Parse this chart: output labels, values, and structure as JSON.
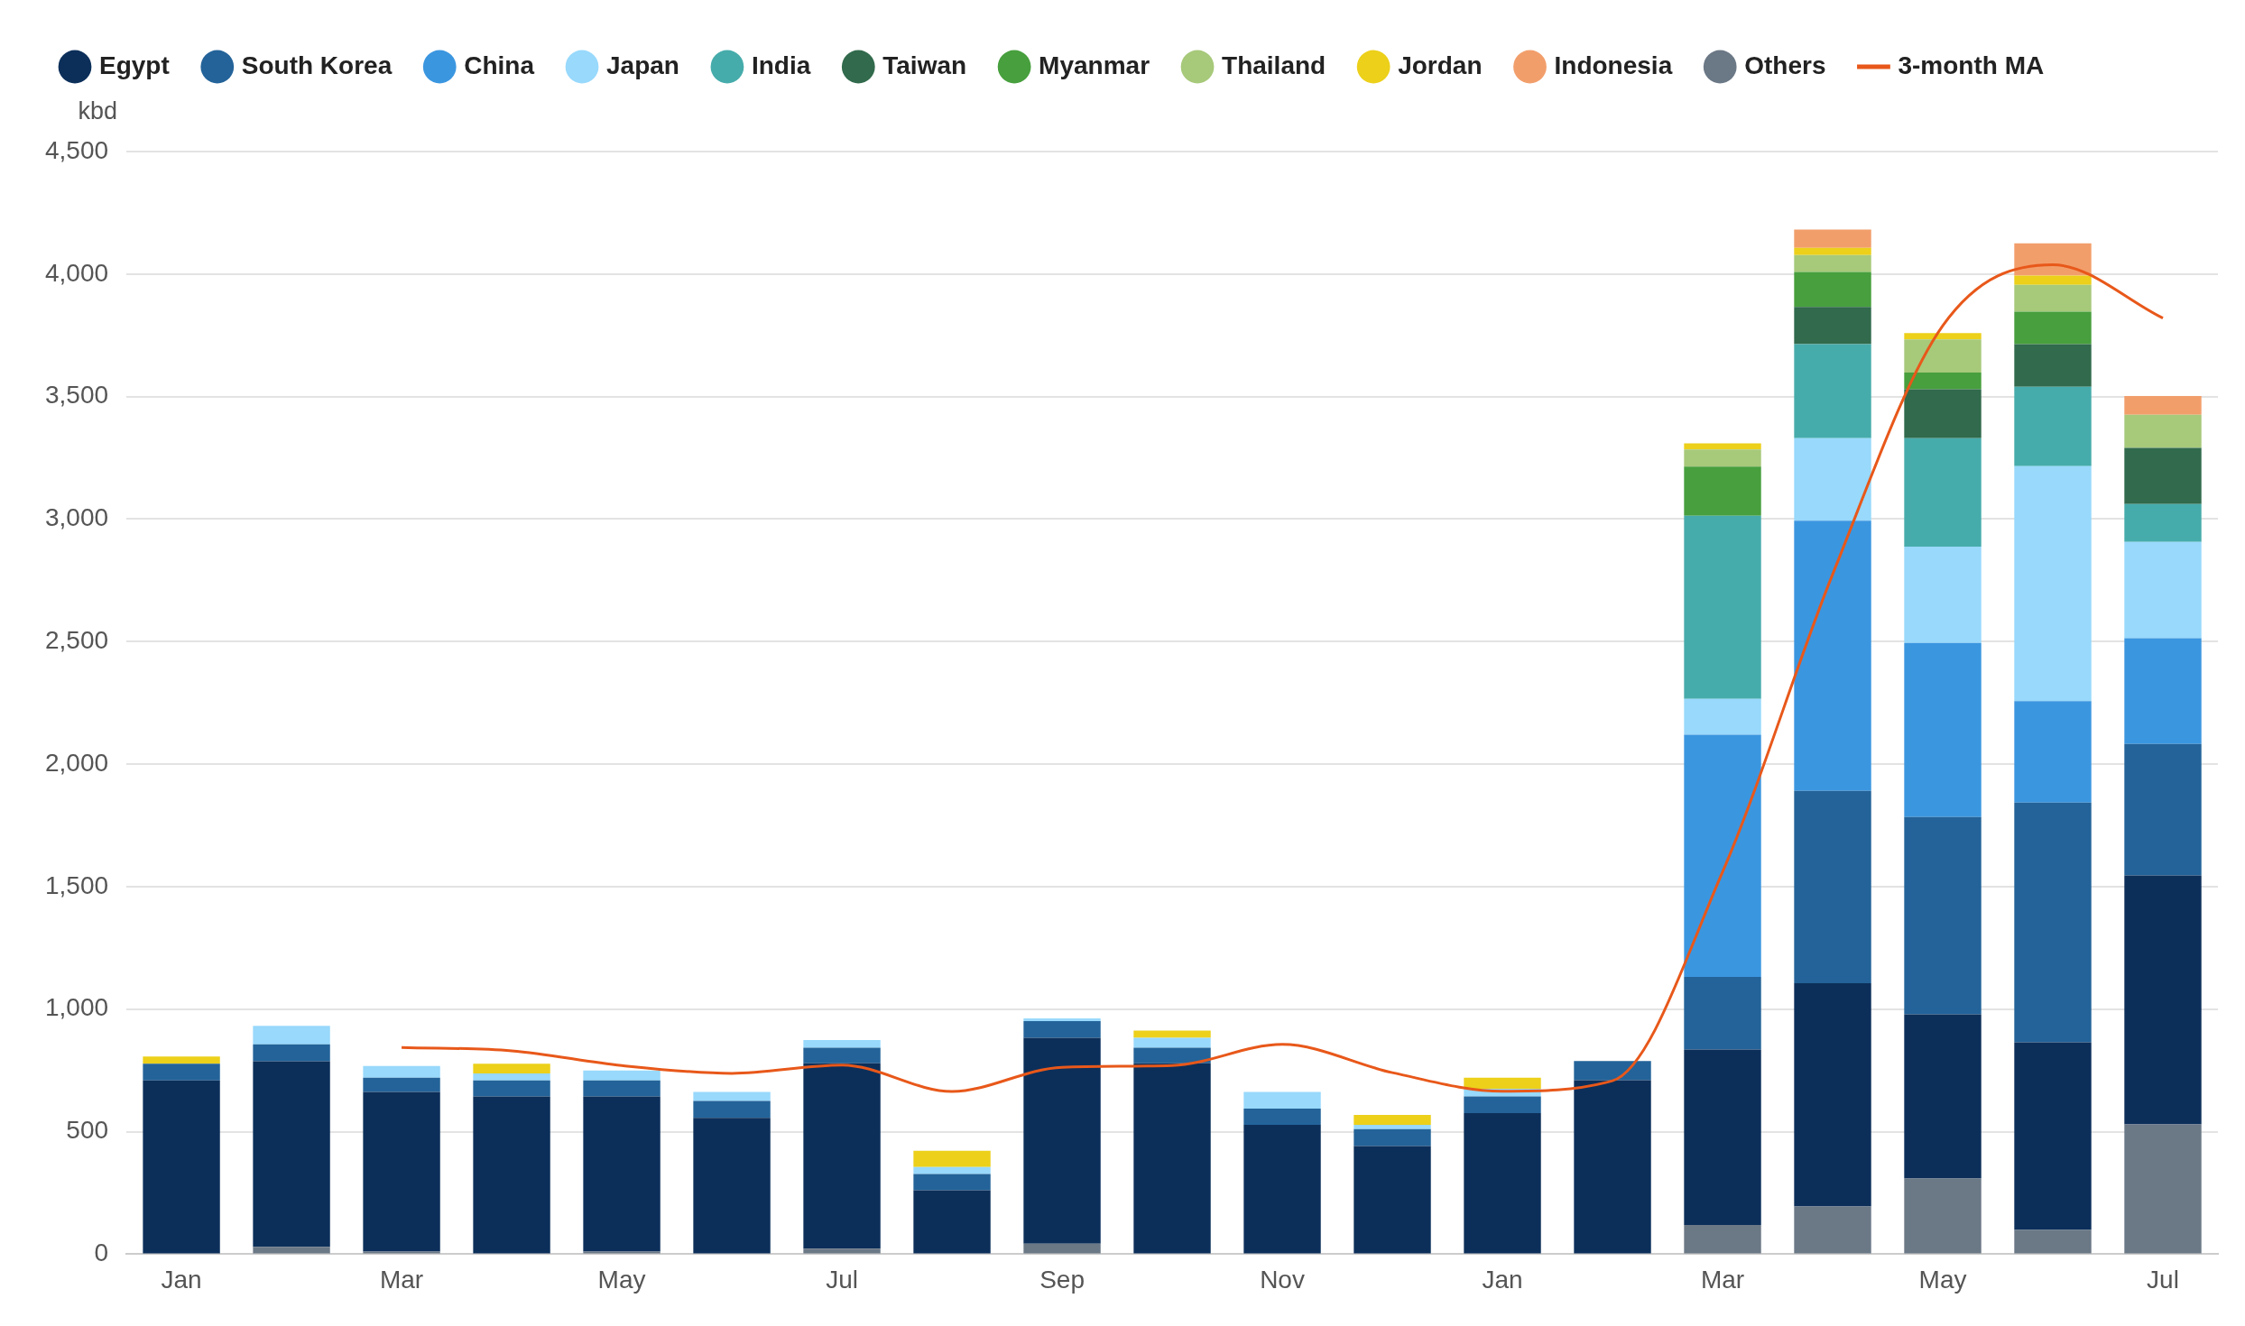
{
  "chart_data": {
    "type": "bar",
    "stacked": true,
    "ylabel": "kbd",
    "categories": [
      "Jan",
      null,
      "Mar",
      null,
      "May",
      null,
      "Jul",
      null,
      "Sep",
      null,
      "Nov",
      null,
      "Jan",
      null,
      "Mar",
      null,
      "May",
      null,
      "Jul"
    ],
    "series": [
      {
        "name": "Others",
        "color": "#6b7886",
        "values": [
          null,
          30,
          11,
          null,
          11,
          null,
          23,
          null,
          43,
          null,
          null,
          null,
          null,
          null,
          119,
          195,
          309,
          99,
          530
        ]
      },
      {
        "name": "Egypt",
        "color": "#0c2f5a",
        "values": [
          709,
          757,
          651,
          644,
          633,
          556,
          756,
          261,
          840,
          779,
          528,
          441,
          576,
          710,
          716,
          911,
          670,
          766,
          1016
        ]
      },
      {
        "name": "South Korea",
        "color": "#236399",
        "values": [
          68,
          69,
          58,
          65,
          65,
          69,
          64,
          66,
          68,
          64,
          66,
          69,
          68,
          78,
          297,
          785,
          805,
          978,
          536
        ]
      },
      {
        "name": "China",
        "color": "#3b96e0",
        "values": [
          null,
          null,
          null,
          null,
          null,
          null,
          null,
          null,
          null,
          null,
          null,
          null,
          null,
          null,
          988,
          1102,
          711,
          414,
          432
        ]
      },
      {
        "name": "Japan",
        "color": "#98d9fc",
        "values": [
          null,
          76,
          48,
          29,
          41,
          37,
          31,
          29,
          11,
          40,
          68,
          18,
          31,
          null,
          146,
          337,
          393,
          959,
          393
        ]
      },
      {
        "name": "India",
        "color": "#46acab",
        "values": [
          null,
          null,
          null,
          null,
          null,
          null,
          null,
          null,
          null,
          null,
          null,
          null,
          null,
          null,
          748,
          384,
          442,
          324,
          155
        ]
      },
      {
        "name": "Taiwan",
        "color": "#316a4c",
        "values": [
          null,
          null,
          null,
          null,
          null,
          null,
          null,
          null,
          null,
          null,
          null,
          null,
          null,
          null,
          null,
          152,
          200,
          174,
          229
        ]
      },
      {
        "name": "Myanmar",
        "color": "#479f3d",
        "values": [
          null,
          null,
          null,
          null,
          null,
          null,
          null,
          null,
          null,
          null,
          null,
          null,
          null,
          null,
          200,
          143,
          68,
          133,
          null
        ]
      },
      {
        "name": "Thailand",
        "color": "#a7c97a",
        "values": [
          null,
          null,
          null,
          null,
          null,
          null,
          null,
          null,
          null,
          null,
          null,
          null,
          null,
          null,
          70,
          69,
          135,
          109,
          135
        ]
      },
      {
        "name": "Jordan",
        "color": "#ecd01a",
        "values": [
          30,
          null,
          null,
          39,
          null,
          null,
          null,
          66,
          null,
          30,
          null,
          40,
          45,
          null,
          25,
          29,
          26,
          38,
          null
        ]
      },
      {
        "name": "Indonesia",
        "color": "#f29e6b",
        "values": [
          null,
          null,
          null,
          null,
          null,
          null,
          null,
          null,
          null,
          null,
          null,
          null,
          null,
          null,
          null,
          75,
          null,
          131,
          76
        ]
      },
      {
        "name": "3-month MA",
        "type": "line",
        "color": "#e8581a",
        "values": [
          null,
          null,
          844,
          830,
          770,
          738,
          772,
          664,
          763,
          770,
          856,
          741,
          665,
          708,
          1560,
          2775,
          3789,
          4038,
          3820
        ]
      }
    ],
    "ylim": [
      0,
      4500
    ],
    "yticks": [
      0,
      500,
      {
        "value": 1000,
        "label": "1,000"
      },
      {
        "value": 1500,
        "label": "1,500"
      },
      {
        "value": 2000,
        "label": "2,000"
      },
      {
        "value": 2500,
        "label": "2,500"
      },
      {
        "value": 3000,
        "label": "3,000"
      },
      {
        "value": 3500,
        "label": "3,500"
      },
      {
        "value": 4000,
        "label": "4,000"
      },
      {
        "value": 4500,
        "label": "4,500"
      }
    ],
    "grid": "y",
    "legend": "top left",
    "marker": "none"
  }
}
